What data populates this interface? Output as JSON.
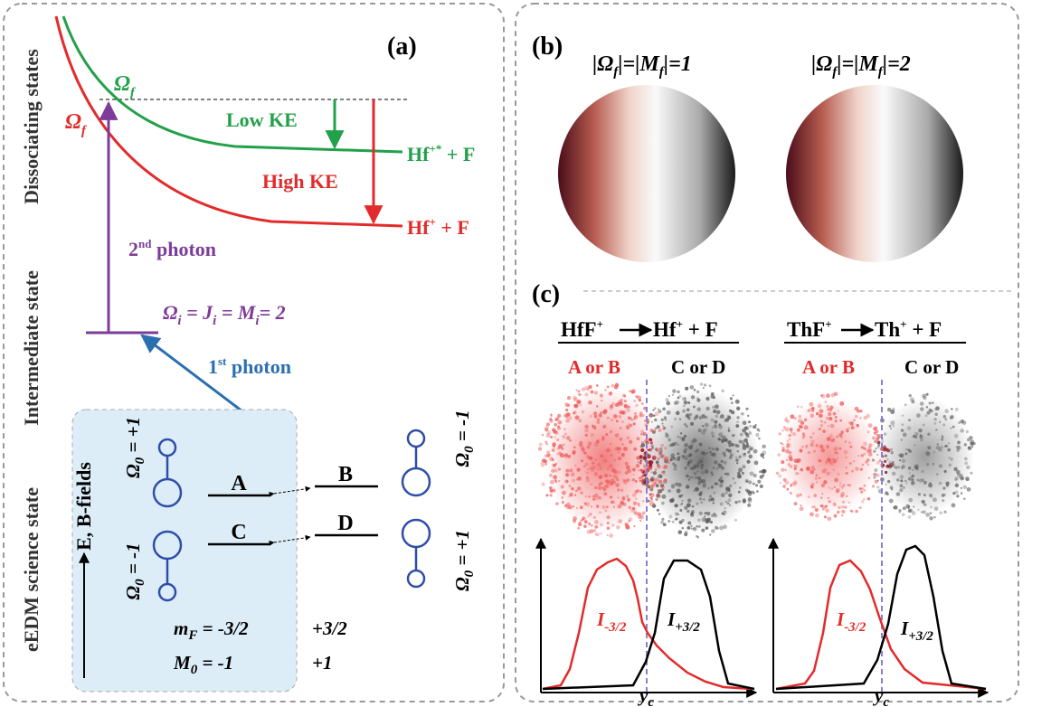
{
  "panel_a": {
    "label": "(a)",
    "state_labels": [
      "Dissociating states",
      "Intermediate state",
      "eEDM science state"
    ],
    "omega_f_green": [
      "Ω",
      "f"
    ],
    "omega_f_red": [
      "Ω",
      "f"
    ],
    "low_ke": "Low KE",
    "high_ke": "High KE",
    "product_excited": [
      "Hf",
      "+*",
      " + F"
    ],
    "product_ground": [
      "Hf",
      "+",
      " + F"
    ],
    "second_photon": [
      "2",
      "nd",
      " photon"
    ],
    "intermediate_level": [
      "Ω",
      "i",
      " = J",
      "i",
      " = M",
      "i",
      "= 2"
    ],
    "first_photon": [
      "1",
      "st",
      " photon"
    ],
    "fields": "E, B-fields",
    "omega0_left": [
      [
        "Ω",
        "0",
        " = +1"
      ],
      [
        "Ω",
        "0",
        " = -1"
      ]
    ],
    "omega0_right": [
      [
        "Ω",
        "0",
        " = -1"
      ],
      [
        "Ω",
        "0",
        " = +1"
      ]
    ],
    "levels": [
      "A",
      "B",
      "C",
      "D"
    ],
    "mf": [
      "m",
      "F",
      " = -3/2"
    ],
    "mf_plus": "+3/2",
    "m0": [
      "M",
      "0",
      " = -1"
    ],
    "m0_plus": "+1"
  },
  "panel_b": {
    "label": "(b)",
    "titles": [
      [
        "|Ω",
        "f",
        "|=|M",
        "f",
        "|=1"
      ],
      [
        "|Ω",
        "f",
        "|=|M",
        "f",
        "|=2"
      ]
    ]
  },
  "panel_c": {
    "label": "(c)",
    "reactions": [
      {
        "parent": [
          "HfF",
          "+"
        ],
        "product": [
          "Hf",
          "+",
          " + F"
        ]
      },
      {
        "parent": [
          "ThF",
          "+"
        ],
        "product": [
          "Th",
          "+",
          " + F"
        ]
      }
    ],
    "ab": "A or B",
    "cd": "C or D",
    "i_minus": [
      "I",
      "-3/2"
    ],
    "i_plus": [
      "I",
      "+3/2"
    ],
    "axis": [
      "y",
      "c"
    ]
  }
}
